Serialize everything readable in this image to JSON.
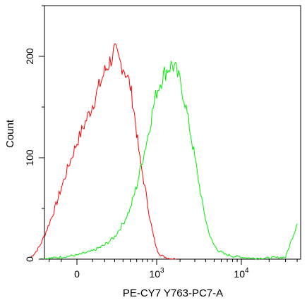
{
  "chart_data": {
    "type": "line",
    "title": "",
    "xlabel": "PE-CY7 Y763-PC7-A",
    "ylabel": "Count",
    "x_scale": "biexponential",
    "x_ticks": [
      {
        "label": "0",
        "value": 0
      },
      {
        "label": "10",
        "sup": "3",
        "value": 1000
      },
      {
        "label": "10",
        "sup": "4",
        "value": 10000
      }
    ],
    "y_ticks": [
      0,
      100,
      200
    ],
    "ylim": [
      0,
      250
    ],
    "grid": false,
    "legend": "none",
    "series": [
      {
        "color": "#ff0000",
        "points": [
          [
            -400,
            2
          ],
          [
            -350,
            6
          ],
          [
            -300,
            12
          ],
          [
            -250,
            22
          ],
          [
            -200,
            35
          ],
          [
            -150,
            50
          ],
          [
            -100,
            70
          ],
          [
            -50,
            92
          ],
          [
            0,
            115
          ],
          [
            50,
            135
          ],
          [
            100,
            152
          ],
          [
            150,
            170
          ],
          [
            200,
            185
          ],
          [
            250,
            195
          ],
          [
            300,
            205
          ],
          [
            350,
            195
          ],
          [
            400,
            190
          ],
          [
            450,
            182
          ],
          [
            500,
            170
          ],
          [
            550,
            150
          ],
          [
            600,
            125
          ],
          [
            650,
            100
          ],
          [
            700,
            85
          ],
          [
            750,
            70
          ],
          [
            800,
            55
          ],
          [
            850,
            40
          ],
          [
            900,
            28
          ],
          [
            950,
            18
          ],
          [
            1000,
            10
          ],
          [
            1100,
            5
          ],
          [
            1200,
            3
          ],
          [
            1400,
            1
          ],
          [
            1800,
            0
          ]
        ]
      },
      {
        "color": "#00ee00",
        "points": [
          [
            -300,
            0
          ],
          [
            -100,
            2
          ],
          [
            0,
            4
          ],
          [
            100,
            8
          ],
          [
            200,
            14
          ],
          [
            300,
            22
          ],
          [
            400,
            35
          ],
          [
            500,
            50
          ],
          [
            600,
            72
          ],
          [
            700,
            98
          ],
          [
            800,
            120
          ],
          [
            900,
            145
          ],
          [
            1000,
            165
          ],
          [
            1200,
            180
          ],
          [
            1400,
            188
          ],
          [
            1600,
            192
          ],
          [
            1800,
            185
          ],
          [
            2000,
            175
          ],
          [
            2300,
            155
          ],
          [
            2600,
            130
          ],
          [
            3000,
            100
          ],
          [
            3400,
            72
          ],
          [
            3800,
            48
          ],
          [
            4300,
            28
          ],
          [
            4800,
            16
          ],
          [
            5500,
            9
          ],
          [
            6500,
            5
          ],
          [
            8000,
            3
          ],
          [
            10000,
            2
          ],
          [
            13000,
            1
          ],
          [
            18000,
            1
          ],
          [
            30000,
            2
          ],
          [
            40000,
            35
          ]
        ]
      }
    ]
  }
}
